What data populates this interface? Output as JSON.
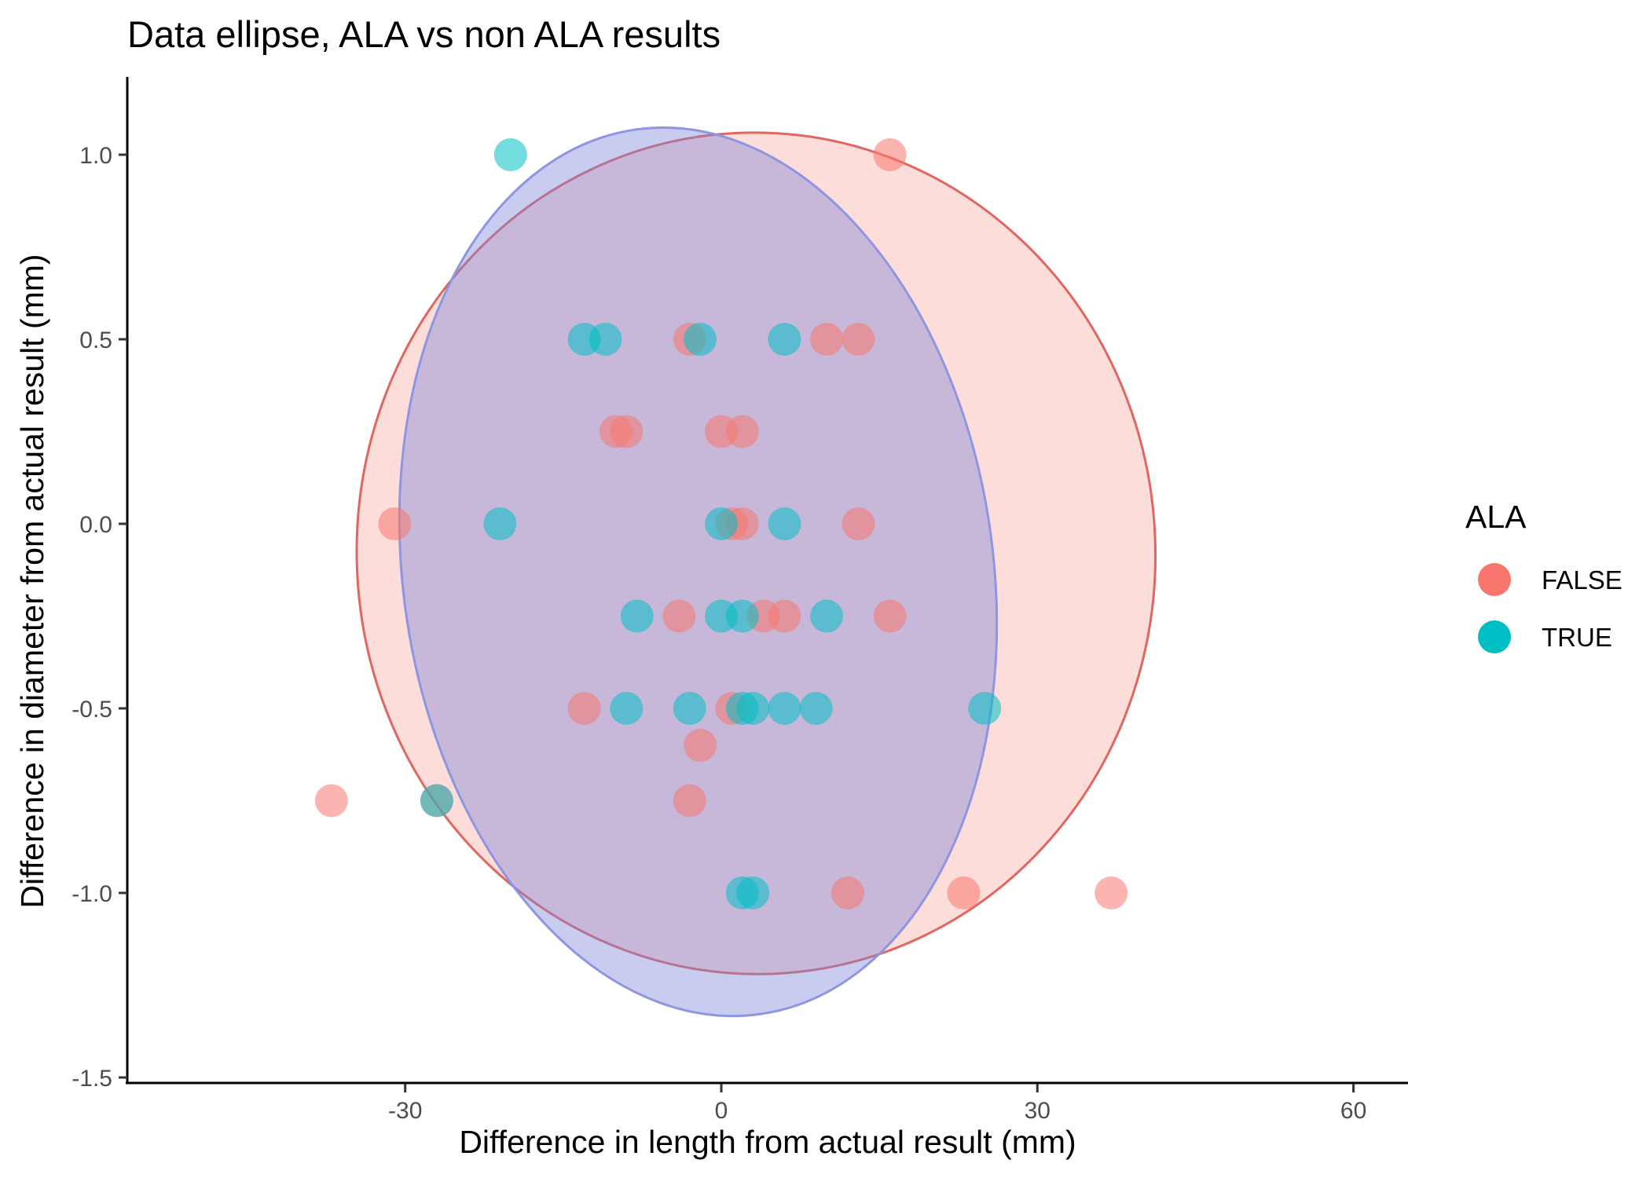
{
  "chart_data": {
    "type": "scatter",
    "title": "Data ellipse, ALA vs non ALA results",
    "xlabel": "Difference in length from actual result (mm)",
    "ylabel": "Difference in diameter from actual result (mm)",
    "xlim": [
      -56,
      66
    ],
    "ylim": [
      -1.52,
      1.2
    ],
    "x_ticks": [
      -30,
      0,
      30,
      60
    ],
    "x_tick_labels": [
      "-30",
      "0",
      "30",
      "60"
    ],
    "y_ticks": [
      -1.5,
      -1.0,
      -0.5,
      0.0,
      0.5,
      1.0
    ],
    "y_tick_labels": [
      "-1.5",
      "-1.0",
      "-0.5",
      "0.0",
      "0.5",
      "1.0"
    ],
    "grid": false,
    "legend": {
      "title": "ALA",
      "position": "right",
      "entries": [
        {
          "label": "FALSE",
          "color": "#F8766D"
        },
        {
          "label": "TRUE",
          "color": "#00BFC4"
        }
      ]
    },
    "series": [
      {
        "name": "FALSE",
        "color": "#F8766D",
        "points": [
          [
            16,
            1.0
          ],
          [
            -3,
            0.5
          ],
          [
            10,
            0.5
          ],
          [
            13,
            0.5
          ],
          [
            -10,
            0.25
          ],
          [
            -9,
            0.25
          ],
          [
            0,
            0.25
          ],
          [
            2,
            0.25
          ],
          [
            -31,
            0.0
          ],
          [
            1,
            0.0
          ],
          [
            2,
            0.0
          ],
          [
            13,
            0.0
          ],
          [
            -4,
            -0.25
          ],
          [
            4,
            -0.25
          ],
          [
            6,
            -0.25
          ],
          [
            16,
            -0.25
          ],
          [
            -13,
            -0.5
          ],
          [
            1,
            -0.5
          ],
          [
            -2,
            -0.6
          ],
          [
            -37,
            -0.75
          ],
          [
            -27,
            -0.75
          ],
          [
            -3,
            -0.75
          ],
          [
            12,
            -1.0
          ],
          [
            23,
            -1.0
          ],
          [
            37,
            -1.0
          ]
        ]
      },
      {
        "name": "TRUE",
        "color": "#00BFC4",
        "points": [
          [
            -20,
            1.0
          ],
          [
            -13,
            0.5
          ],
          [
            -11,
            0.5
          ],
          [
            -2,
            0.5
          ],
          [
            6,
            0.5
          ],
          [
            -21,
            0.0
          ],
          [
            0,
            0.0
          ],
          [
            6,
            0.0
          ],
          [
            -8,
            -0.25
          ],
          [
            0,
            -0.25
          ],
          [
            2,
            -0.25
          ],
          [
            10,
            -0.25
          ],
          [
            -9,
            -0.5
          ],
          [
            -3,
            -0.5
          ],
          [
            2,
            -0.5
          ],
          [
            3,
            -0.5
          ],
          [
            6,
            -0.5
          ],
          [
            9,
            -0.5
          ],
          [
            25,
            -0.5
          ],
          [
            -27,
            -0.75
          ],
          [
            2,
            -1.0
          ],
          [
            3,
            -1.0
          ]
        ]
      }
    ],
    "ellipses": [
      {
        "series": "FALSE",
        "center": [
          3.3,
          -0.08
        ],
        "x_half_width": 37.9,
        "y_half_height": 1.14,
        "rotation_deg": -2.3,
        "fill": "#F8766D",
        "stroke": "#E06660"
      },
      {
        "series": "TRUE",
        "center": [
          -2.2,
          -0.13
        ],
        "x_half_width": 28.0,
        "y_half_height": 1.21,
        "rotation_deg": -8.0,
        "fill": "#7B86D9",
        "stroke": "#8E95E2"
      }
    ]
  }
}
